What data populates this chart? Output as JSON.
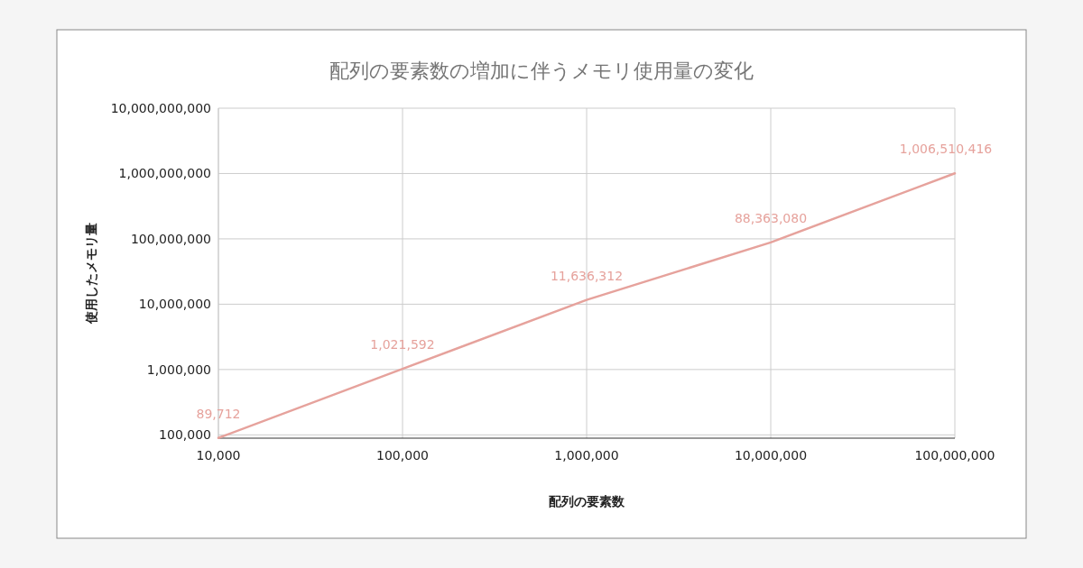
{
  "chart_data": {
    "type": "line",
    "title": "配列の要素数の増加に伴うメモリ使用量の変化",
    "xlabel": "配列の要素数",
    "ylabel": "使用したメモリ量",
    "x": [
      10000,
      100000,
      1000000,
      10000000,
      100000000
    ],
    "series": [
      {
        "color": "#e6a29c",
        "values": [
          89712,
          1021592,
          11636312,
          88363080,
          1006510416
        ],
        "value_labels": [
          "89,712",
          "1,021,592",
          "11,636,312",
          "88,363,080",
          "1,006,510,416"
        ]
      }
    ],
    "log": "xy",
    "xlim": [
      10000,
      100000000
    ],
    "ylim": [
      89000,
      10000000000
    ],
    "xticks": [
      {
        "value": 10000,
        "label": "10,000"
      },
      {
        "value": 100000,
        "label": "100,000"
      },
      {
        "value": 1000000,
        "label": "1,000,000"
      },
      {
        "value": 10000000,
        "label": "10,000,000"
      },
      {
        "value": 100000000,
        "label": "100,000,000"
      }
    ],
    "yticks": [
      {
        "value": 100000,
        "label": "100,000"
      },
      {
        "value": 1000000,
        "label": "1,000,000"
      },
      {
        "value": 10000000,
        "label": "10,000,000"
      },
      {
        "value": 100000000,
        "label": "100,000,000"
      },
      {
        "value": 1000000000,
        "label": "1,000,000,000"
      },
      {
        "value": 10000000000,
        "label": "10,000,000,000"
      }
    ],
    "grid": true
  }
}
